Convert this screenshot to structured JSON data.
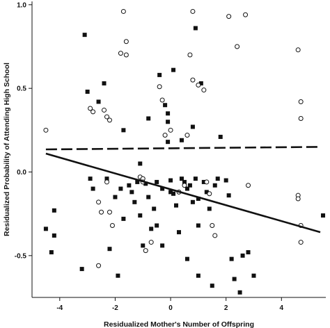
{
  "chart_data": {
    "type": "scatter",
    "title": "",
    "xlabel": "Residualized Mother's Number of Offspring",
    "ylabel": "Residualized Probability of Attending High School",
    "xlim": [
      -5,
      5.6
    ],
    "ylim": [
      -0.75,
      1.02
    ],
    "x_ticks": [
      -4,
      -2,
      0,
      2,
      4
    ],
    "y_ticks": [
      -0.5,
      0.0,
      0.5,
      1.0
    ],
    "x_tick_labels": [
      "-4",
      "-2",
      "0",
      "2",
      "4"
    ],
    "y_tick_labels": [
      "-0.5",
      "0.0",
      "0.5",
      "1.0"
    ],
    "grid": false,
    "legend": false,
    "series": [
      {
        "marker": "filled-square",
        "color": "#111111",
        "points": [
          [
            -4.5,
            -0.34
          ],
          [
            -4.3,
            -0.48
          ],
          [
            -4.2,
            -0.23
          ],
          [
            -4.2,
            -0.38
          ],
          [
            -3.2,
            -0.58
          ],
          [
            -3.1,
            0.82
          ],
          [
            -3.0,
            0.48
          ],
          [
            -2.9,
            -0.04
          ],
          [
            -2.8,
            -0.1
          ],
          [
            -2.6,
            0.42
          ],
          [
            -2.4,
            0.53
          ],
          [
            -2.3,
            -0.04
          ],
          [
            -2.2,
            -0.46
          ],
          [
            -2.0,
            -0.15
          ],
          [
            -1.9,
            -0.62
          ],
          [
            -1.8,
            -0.1
          ],
          [
            -1.7,
            0.25
          ],
          [
            -1.7,
            -0.28
          ],
          [
            -1.5,
            -0.08
          ],
          [
            -1.4,
            -0.12
          ],
          [
            -1.3,
            -0.18
          ],
          [
            -1.2,
            -0.06
          ],
          [
            -1.1,
            0.05
          ],
          [
            -1.1,
            -0.26
          ],
          [
            -1.0,
            -0.44
          ],
          [
            -0.9,
            -0.07
          ],
          [
            -0.8,
            0.32
          ],
          [
            -0.8,
            -0.15
          ],
          [
            -0.7,
            -0.34
          ],
          [
            -0.6,
            -0.22
          ],
          [
            -0.5,
            -0.32
          ],
          [
            -0.5,
            -0.06
          ],
          [
            -0.4,
            0.58
          ],
          [
            -0.3,
            -0.1
          ],
          [
            -0.3,
            -0.44
          ],
          [
            -0.2,
            0.4
          ],
          [
            -0.1,
            0.18
          ],
          [
            -0.1,
            0.3
          ],
          [
            -0.1,
            0.35
          ],
          [
            0.0,
            -0.05
          ],
          [
            0.0,
            -0.12
          ],
          [
            0.1,
            0.61
          ],
          [
            0.1,
            -0.13
          ],
          [
            0.2,
            -0.2
          ],
          [
            0.3,
            -0.36
          ],
          [
            0.4,
            0.19
          ],
          [
            0.4,
            -0.04
          ],
          [
            0.5,
            -0.06
          ],
          [
            0.6,
            -0.1
          ],
          [
            0.6,
            -0.52
          ],
          [
            0.7,
            -0.08
          ],
          [
            0.8,
            0.27
          ],
          [
            0.8,
            -0.18
          ],
          [
            0.9,
            0.86
          ],
          [
            0.9,
            -0.04
          ],
          [
            1.0,
            -0.16
          ],
          [
            1.0,
            -0.32
          ],
          [
            1.0,
            -0.62
          ],
          [
            1.1,
            0.53
          ],
          [
            1.2,
            -0.06
          ],
          [
            1.3,
            -0.12
          ],
          [
            1.4,
            -0.22
          ],
          [
            1.5,
            -0.68
          ],
          [
            1.6,
            -0.08
          ],
          [
            1.7,
            -0.04
          ],
          [
            1.8,
            0.21
          ],
          [
            2.0,
            -0.05
          ],
          [
            2.1,
            -0.14
          ],
          [
            2.2,
            -0.52
          ],
          [
            2.3,
            -0.64
          ],
          [
            2.5,
            -0.72
          ],
          [
            2.6,
            -0.5
          ],
          [
            2.8,
            -0.48
          ],
          [
            3.0,
            -0.62
          ],
          [
            5.5,
            -0.26
          ]
        ]
      },
      {
        "marker": "open-circle",
        "color": "#111111",
        "points": [
          [
            -4.5,
            0.25
          ],
          [
            -2.9,
            0.38
          ],
          [
            -2.8,
            0.36
          ],
          [
            -2.4,
            0.37
          ],
          [
            -2.3,
            0.33
          ],
          [
            -2.2,
            0.31
          ],
          [
            -2.6,
            -0.18
          ],
          [
            -2.5,
            -0.24
          ],
          [
            -2.3,
            -0.06
          ],
          [
            -2.2,
            -0.24
          ],
          [
            -2.1,
            -0.32
          ],
          [
            -2.6,
            -0.56
          ],
          [
            -1.8,
            0.71
          ],
          [
            -1.7,
            0.96
          ],
          [
            -1.6,
            0.78
          ],
          [
            -1.6,
            0.7
          ],
          [
            -1.1,
            -0.03
          ],
          [
            -1.0,
            -0.04
          ],
          [
            -1.0,
            -0.06
          ],
          [
            -0.9,
            -0.47
          ],
          [
            -0.7,
            -0.42
          ],
          [
            -0.4,
            0.51
          ],
          [
            -0.3,
            0.43
          ],
          [
            -0.2,
            0.22
          ],
          [
            0.0,
            0.25
          ],
          [
            0.3,
            -0.12
          ],
          [
            0.5,
            -0.08
          ],
          [
            0.6,
            0.22
          ],
          [
            0.7,
            0.7
          ],
          [
            0.8,
            0.96
          ],
          [
            0.8,
            0.55
          ],
          [
            1.0,
            0.52
          ],
          [
            1.2,
            0.49
          ],
          [
            1.3,
            -0.06
          ],
          [
            1.4,
            -0.13
          ],
          [
            1.5,
            -0.32
          ],
          [
            1.6,
            -0.38
          ],
          [
            2.1,
            0.93
          ],
          [
            2.4,
            0.75
          ],
          [
            2.7,
            0.94
          ],
          [
            2.8,
            -0.08
          ],
          [
            4.6,
            -0.14
          ],
          [
            4.6,
            -0.16
          ],
          [
            4.6,
            0.73
          ],
          [
            4.7,
            0.42
          ],
          [
            4.7,
            0.32
          ],
          [
            4.7,
            -0.32
          ],
          [
            4.7,
            -0.42
          ]
        ]
      },
      {
        "marker": "solid-line",
        "color": "#111111",
        "points": [
          [
            -4.5,
            0.11
          ],
          [
            5.4,
            -0.36
          ]
        ]
      },
      {
        "marker": "dashed-line",
        "color": "#111111",
        "points": [
          [
            -4.5,
            0.135
          ],
          [
            5.4,
            0.15
          ]
        ]
      }
    ]
  }
}
